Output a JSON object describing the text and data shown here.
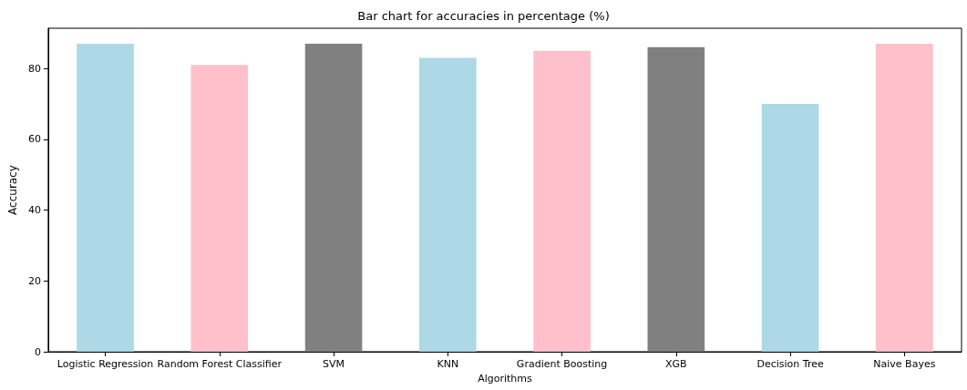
{
  "chart_data": {
    "type": "bar",
    "title": "Bar chart for accuracies in percentage (%)",
    "xlabel": "Algorithms",
    "ylabel": "Accuracy",
    "categories": [
      "Logistic Regression",
      "Random Forest Classifier",
      "SVM",
      "KNN",
      "Gradient Boosting",
      "XGB",
      "Decision Tree",
      "Naive Bayes"
    ],
    "values": [
      87,
      81,
      87,
      83,
      85,
      86,
      70,
      87
    ],
    "colors": [
      "#add8e6",
      "#ffc0cb",
      "#808080",
      "#add8e6",
      "#ffc0cb",
      "#808080",
      "#add8e6",
      "#ffc0cb"
    ],
    "ylim": [
      0,
      91.35
    ],
    "yticks": [
      0,
      20,
      40,
      60,
      80
    ],
    "grid": false
  }
}
